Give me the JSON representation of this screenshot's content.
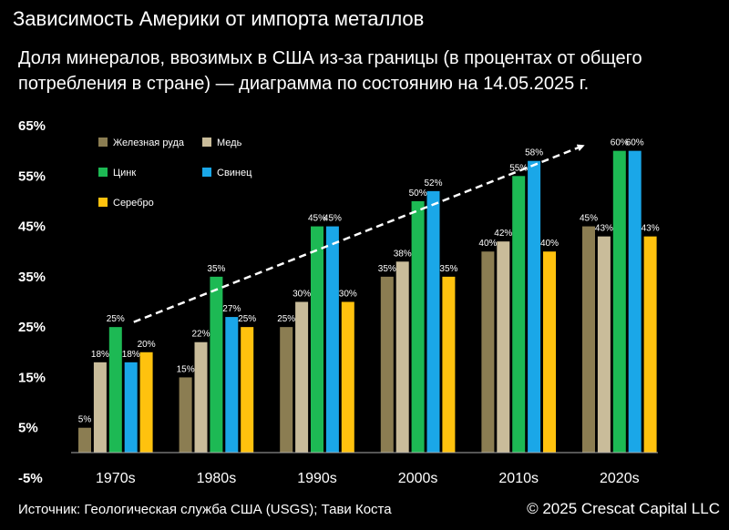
{
  "header": {
    "title": "Зависимость Америки от импорта металлов",
    "subtitle": "Доля минералов, ввозимых в США из-за границы (в процентах от общего потребления в стране) — диаграмма по состоянию на 14.05.2025 г."
  },
  "footer": {
    "source": "Источник: Геологическая служба США (USGS); Тави Коста",
    "copyright": "© 2025 Crescat Capital LLC"
  },
  "chart_data": {
    "type": "bar",
    "title": "Зависимость Америки от импорта металлов",
    "categories": [
      "1970s",
      "1980s",
      "1990s",
      "2000s",
      "2010s",
      "2020s"
    ],
    "ylim": [
      -5,
      65
    ],
    "yticks": [
      -5,
      5,
      15,
      25,
      35,
      45,
      55,
      65
    ],
    "ytick_labels": [
      "-5%",
      "5%",
      "15%",
      "25%",
      "35%",
      "45%",
      "55%",
      "65%"
    ],
    "grid": false,
    "legend_position": "top-left",
    "series": [
      {
        "name": "Железная руда",
        "color": "#8b7d52",
        "values": [
          5,
          15,
          25,
          35,
          40,
          45
        ],
        "labels": [
          "5%",
          "15%",
          "25%",
          "35%",
          "40%",
          "45%"
        ]
      },
      {
        "name": "Медь",
        "color": "#c9bc9a",
        "values": [
          18,
          22,
          30,
          38,
          42,
          43
        ],
        "labels": [
          "18%",
          "22%",
          "30%",
          "38%",
          "42%",
          "43%"
        ]
      },
      {
        "name": "Цинк",
        "color": "#1db954",
        "values": [
          25,
          35,
          45,
          50,
          55,
          60
        ],
        "labels": [
          "25%",
          "35%",
          "45%",
          "50%",
          "55%",
          "60%"
        ]
      },
      {
        "name": "Свинец",
        "color": "#1aa7e8",
        "values": [
          18,
          27,
          45,
          52,
          58,
          60
        ],
        "labels": [
          "18%",
          "27%",
          "45%",
          "52%",
          "58%",
          "60%"
        ]
      },
      {
        "name": "Серебро",
        "color": "#ffc20e",
        "values": [
          20,
          25,
          30,
          35,
          40,
          43
        ],
        "labels": [
          "20%",
          "25%",
          "30%",
          "35%",
          "40%",
          "43%"
        ]
      }
    ],
    "annotations": [
      {
        "type": "trend-arrow",
        "from": {
          "category": "1970s",
          "value": 26
        },
        "to": {
          "category": "2020s",
          "value": 61
        }
      }
    ]
  }
}
